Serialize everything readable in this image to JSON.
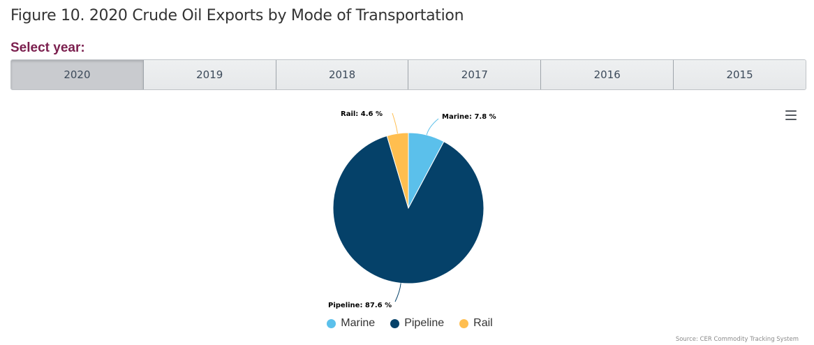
{
  "figure": {
    "title": "Figure 10. 2020 Crude Oil Exports by Mode of Transportation",
    "select_label": "Select year:",
    "years": [
      {
        "label": "2020",
        "active": true
      },
      {
        "label": "2019",
        "active": false
      },
      {
        "label": "2018",
        "active": false
      },
      {
        "label": "2017",
        "active": false
      },
      {
        "label": "2016",
        "active": false
      },
      {
        "label": "2015",
        "active": false
      }
    ],
    "menu_icon": "hamburger-menu-icon",
    "credits": "Source: CER Commodity Tracking System"
  },
  "chart_data": {
    "type": "pie",
    "title": "",
    "slices": [
      {
        "name": "Marine",
        "value": 7.8,
        "color": "#5bc0eb",
        "label": "Marine: 7.8 %"
      },
      {
        "name": "Pipeline",
        "value": 87.6,
        "color": "#054169",
        "label": "Pipeline: 87.6 %"
      },
      {
        "name": "Rail",
        "value": 4.6,
        "color": "#ffbe4f",
        "label": "Rail: 4.6 %"
      }
    ],
    "legend": {
      "placement": "bottom-center"
    }
  }
}
